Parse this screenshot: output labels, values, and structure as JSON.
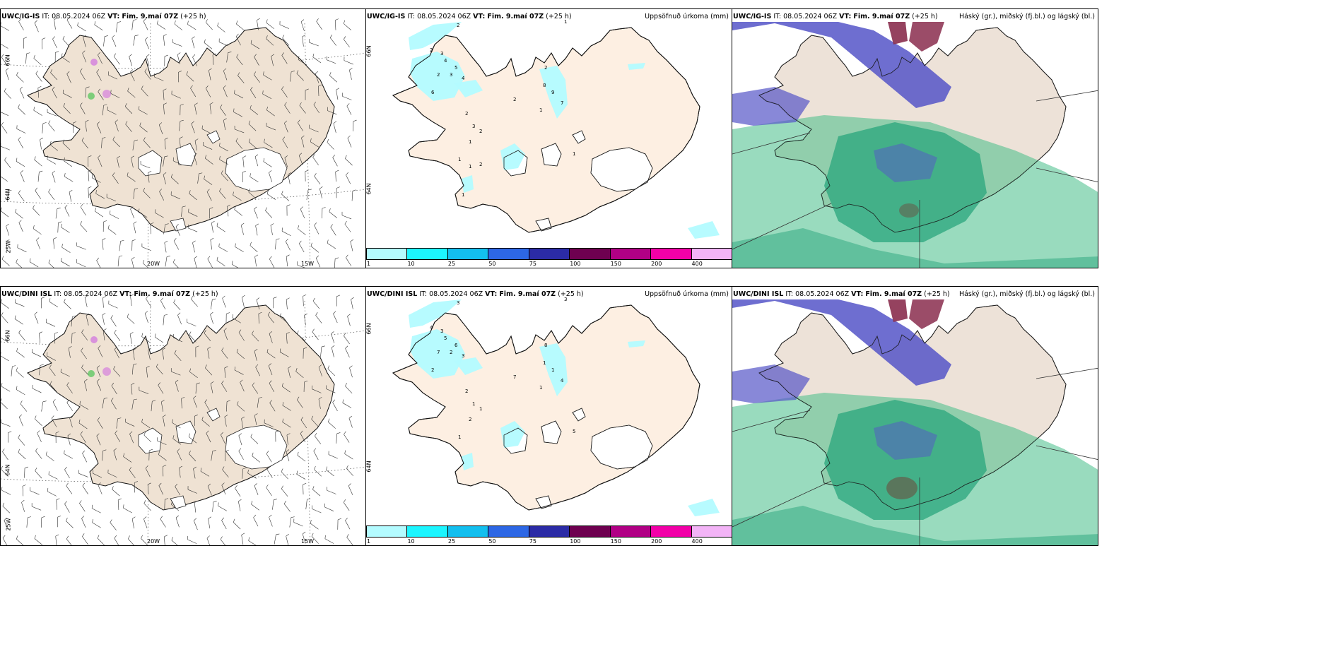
{
  "rows": [
    {
      "model": "UWC/IG-IS",
      "it_label": "IT:",
      "it_value": "08.05.2024 06Z",
      "vt_label": "VT:",
      "vt_value": "Fim. 9.maí 07Z",
      "lead": "(+25 h)"
    },
    {
      "model": "UWC/DINI ISL",
      "it_label": "IT:",
      "it_value": "08.05.2024 06Z",
      "vt_label": "VT:",
      "vt_value": "Fim. 9.maí 07Z",
      "lead": "(+25 h)"
    }
  ],
  "precip_title": "Uppsöfnuð úrkoma (mm)",
  "cloud_title": "Háský (gr.), miðský (fj.bl.) og lágský (bl.)",
  "colorbar": {
    "labels": [
      "1",
      "10",
      "25",
      "50",
      "75",
      "100",
      "150",
      "200",
      "400"
    ],
    "colors": [
      "#b3fbff",
      "#1cf5ff",
      "#13bfef",
      "#2d67e5",
      "#2b2ba6",
      "#6e0050",
      "#b10085",
      "#f200a8",
      "#f3b4f7"
    ]
  },
  "axes": {
    "lat_66": "66N",
    "lat_64": "64N",
    "lon_25": "25W",
    "lon_20": "20W",
    "lon_15": "15W"
  },
  "colors": {
    "land_wind": "#efe2d3",
    "land_precip": "#fdefe2",
    "land_cloud": "#ede2d8",
    "glacier": "#ffffff",
    "precip_light": "#b3fbff",
    "low_cloud": "#2aa57c",
    "mid_cloud": "#45bd88",
    "high_cloud": "#5555c8",
    "high_cloud_dark": "#8a2d4e"
  },
  "precip_labels_top": [
    "2",
    "1",
    "2",
    "3",
    "4",
    "5",
    "2",
    "3",
    "4",
    "6",
    "8",
    "9",
    "7",
    "2",
    "2",
    "1",
    "1",
    "2",
    "3",
    "2",
    "1",
    "1",
    "1",
    "2",
    "1"
  ],
  "precip_labels_bottom": [
    "3",
    "3",
    "4",
    "3",
    "5",
    "6",
    "7",
    "2",
    "3",
    "2",
    "1",
    "1",
    "4",
    "8",
    "7",
    "1",
    "5",
    "2",
    "1",
    "1",
    "2",
    "1"
  ]
}
